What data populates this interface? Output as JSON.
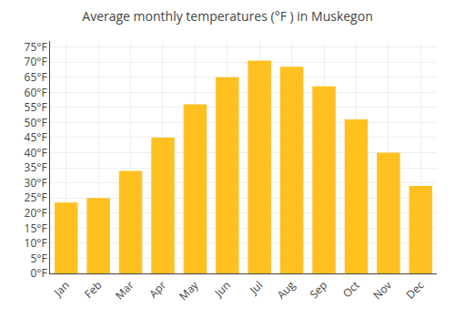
{
  "chart_data": {
    "type": "bar",
    "title": "Average monthly temperatures (°F ) in Muskegon",
    "categories": [
      "Jan",
      "Feb",
      "Mar",
      "Apr",
      "May",
      "Jun",
      "Jul",
      "Aug",
      "Sep",
      "Oct",
      "Nov",
      "Dec"
    ],
    "values": [
      23.5,
      25.0,
      34.0,
      45.0,
      56.0,
      65.0,
      70.5,
      68.5,
      62.0,
      51.0,
      40.0,
      29.0
    ],
    "color": "#FFC020",
    "ylim": [
      0,
      77
    ],
    "yticks": [
      {
        "value": 0,
        "label": "0°F"
      },
      {
        "value": 5,
        "label": "5°F"
      },
      {
        "value": 10,
        "label": "10°F"
      },
      {
        "value": 15,
        "label": "15°F"
      },
      {
        "value": 20,
        "label": "20°F"
      },
      {
        "value": 25,
        "label": "25°F"
      },
      {
        "value": 30,
        "label": "30°F"
      },
      {
        "value": 35,
        "label": "35°F"
      },
      {
        "value": 40,
        "label": "40°F"
      },
      {
        "value": 45,
        "label": "45°F"
      },
      {
        "value": 50,
        "label": "50°F"
      },
      {
        "value": 55,
        "label": "55°F"
      },
      {
        "value": 60,
        "label": "60°F"
      },
      {
        "value": 65,
        "label": "65°F"
      },
      {
        "value": 70,
        "label": "70°F"
      },
      {
        "value": 75,
        "label": "75°F"
      }
    ],
    "grid": true
  }
}
